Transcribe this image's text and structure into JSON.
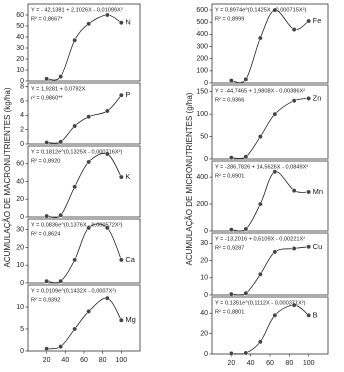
{
  "chart_data": [
    {
      "type": "scatter",
      "label": "N",
      "y_label": "ACUMULAÇÃO DE MACRONUTRIENTES (kg/ha)",
      "equation": "Y = - 42,1381 + 2,1026X - 0,01099X²",
      "r2": "R² = 0,8667*",
      "x": [
        20,
        35,
        50,
        65,
        85,
        100
      ],
      "values": [
        2,
        4,
        37,
        52,
        60,
        53
      ],
      "xlim": [
        0,
        120
      ],
      "ylim": [
        0,
        70
      ],
      "yticks": [
        0,
        10,
        20,
        30,
        40,
        50,
        60
      ]
    },
    {
      "type": "scatter",
      "label": "P",
      "equation": "Y = 1,9281 + 0,0792X",
      "r2": "r² = 0,9860**",
      "x": [
        20,
        35,
        50,
        65,
        85,
        100
      ],
      "values": [
        0.2,
        0.3,
        2.5,
        3.8,
        4.6,
        6.8
      ],
      "xlim": [
        0,
        120
      ],
      "ylim": [
        0,
        8.5
      ],
      "yticks": [
        0,
        2,
        4,
        6,
        8
      ]
    },
    {
      "type": "scatter",
      "label": "K",
      "equation": "Y = 0,1812e^(0,1325X - 0,000716X²)",
      "r2": "R² = 0,8920",
      "x": [
        20,
        35,
        50,
        65,
        85,
        100
      ],
      "values": [
        1,
        2,
        34,
        62,
        71,
        45
      ],
      "xlim": [
        0,
        120
      ],
      "ylim": [
        0,
        80
      ],
      "yticks": [
        0,
        20,
        40,
        60
      ]
    },
    {
      "type": "scatter",
      "label": "Ca",
      "equation": "Y = 0,0836e^(0,1376X - 0,000572X²)",
      "r2": "R² = 0,8624",
      "x": [
        20,
        35,
        50,
        65,
        85,
        100
      ],
      "values": [
        1,
        1,
        13,
        31,
        31,
        13
      ],
      "xlim": [
        0,
        120
      ],
      "ylim": [
        0,
        36
      ],
      "yticks": [
        0,
        10,
        20,
        30
      ]
    },
    {
      "type": "scatter",
      "label": "Mg",
      "equation": "Y = 0,0109e^(0,1432X - 0,0007X²)",
      "r2": "R² = 0,9392",
      "x": [
        20,
        35,
        50,
        65,
        85,
        100
      ],
      "values": [
        0.5,
        1,
        5,
        9,
        12,
        7
      ],
      "xlim": [
        0,
        120
      ],
      "ylim": [
        0,
        15
      ],
      "yticks": [
        0,
        5,
        10
      ],
      "xticks": [
        20,
        40,
        60,
        80,
        100
      ]
    },
    {
      "type": "scatter",
      "label": "Fe",
      "y_label": "ACUMULAÇÃO DE MICRONUTRIENTES (g/ha)",
      "equation": "Y = 0,8974e^(0,1425X - 0,000715X²)",
      "r2": "R² = 0,8999",
      "x": [
        20,
        35,
        50,
        65,
        85,
        100
      ],
      "values": [
        20,
        30,
        370,
        600,
        440,
        510
      ],
      "xlim": [
        0,
        120
      ],
      "ylim": [
        0,
        650
      ],
      "yticks": [
        0,
        100,
        200,
        300,
        400,
        500,
        600
      ]
    },
    {
      "type": "scatter",
      "label": "Zn",
      "equation": "Y = -44,7465 + 1,9808X - 0,00386X²",
      "r2": "R² = 0,9366",
      "x": [
        20,
        35,
        50,
        65,
        85,
        100
      ],
      "values": [
        3,
        5,
        50,
        100,
        130,
        135
      ],
      "xlim": [
        0,
        120
      ],
      "ylim": [
        0,
        165
      ],
      "yticks": [
        0,
        50,
        100,
        150
      ]
    },
    {
      "type": "scatter",
      "label": "Mn",
      "equation": "Y = -286,7826 + 14,5626X - 0,0849X²",
      "r2": "R² = 0,6901",
      "x": [
        20,
        35,
        50,
        65,
        85,
        100
      ],
      "values": [
        10,
        15,
        200,
        440,
        300,
        290
      ],
      "xlim": [
        0,
        120
      ],
      "ylim": [
        0,
        520
      ],
      "yticks": [
        0,
        200,
        400
      ]
    },
    {
      "type": "scatter",
      "label": "Cu",
      "equation": "Y = -13,2016 + 0,6109X - 0,00221X²",
      "r2": "R² = 0,9287",
      "x": [
        20,
        35,
        50,
        65,
        85,
        100
      ],
      "values": [
        0.5,
        1,
        12,
        25,
        27,
        28
      ],
      "xlim": [
        0,
        120
      ],
      "ylim": [
        0,
        36
      ],
      "yticks": [
        0,
        10,
        20,
        30
      ]
    },
    {
      "type": "scatter",
      "label": "B",
      "equation": "Y = 0,1351e^(0,1112X - 0,000371X²)",
      "r2": "R² = 0,8801",
      "x": [
        20,
        35,
        50,
        65,
        85,
        100
      ],
      "values": [
        0.5,
        1,
        12,
        38,
        48,
        38
      ],
      "xlim": [
        0,
        120
      ],
      "ylim": [
        0,
        56
      ],
      "yticks": [
        0,
        20,
        40
      ],
      "xticks": [
        20,
        40,
        60,
        80,
        100
      ]
    }
  ]
}
